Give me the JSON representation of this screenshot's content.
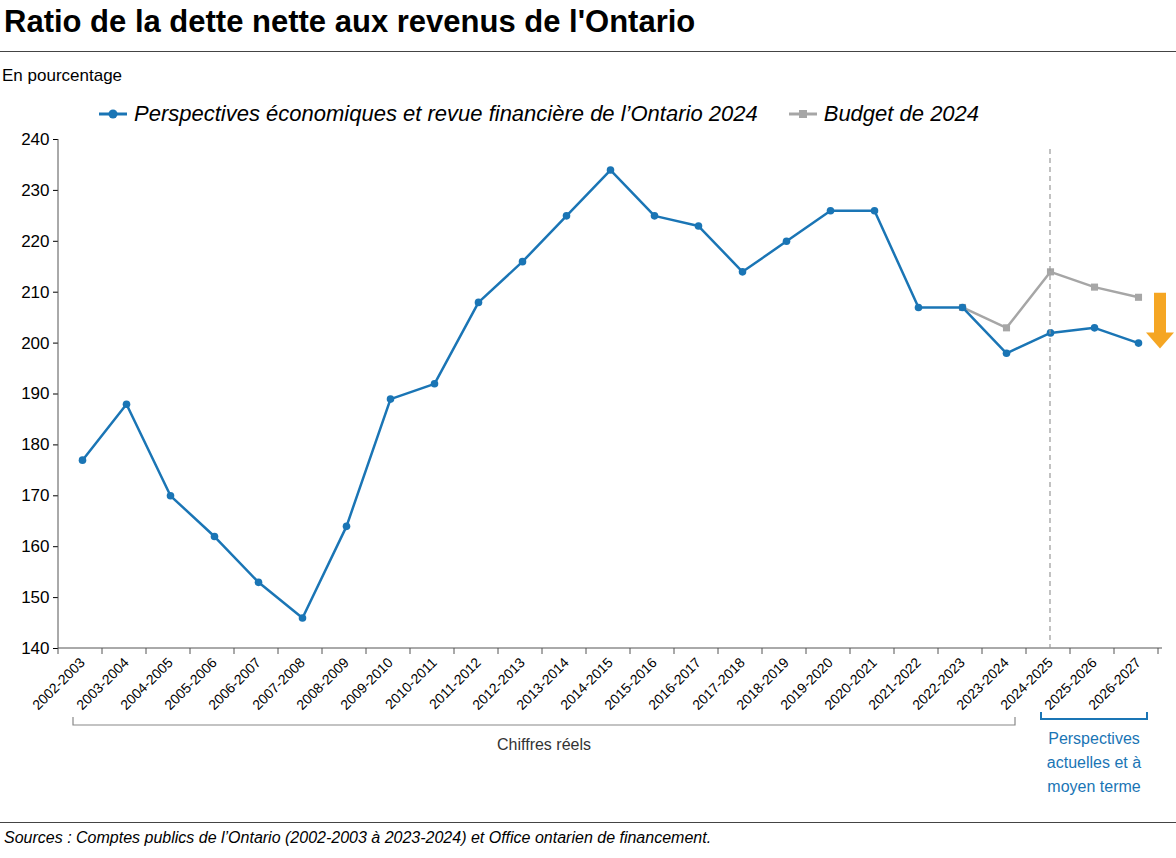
{
  "chart_data": {
    "type": "line",
    "title": "Ratio de la dette nette aux revenus de l'Ontario",
    "subtitle": "En pourcentage",
    "categories": [
      "2002-2003",
      "2003-2004",
      "2004-2005",
      "2005-2006",
      "2006-2007",
      "2007-2008",
      "2008-2009",
      "2009-2010",
      "2010-2011",
      "2011-2012",
      "2012-2013",
      "2013-2014",
      "2014-2015",
      "2015-2016",
      "2016-2017",
      "2017-2018",
      "2018-2019",
      "2019-2020",
      "2020-2021",
      "2021-2022",
      "2022-2023",
      "2023-2024",
      "2024-2025",
      "2025-2026",
      "2026-2027"
    ],
    "series": [
      {
        "name": "Perspectives économiques et revue financière de l’Ontario 2024",
        "color": "#1a75b5",
        "marker": "circle",
        "values": [
          177,
          188,
          170,
          162,
          153,
          146,
          164,
          189,
          192,
          208,
          216,
          225,
          234,
          225,
          223,
          214,
          220,
          226,
          226,
          207,
          207,
          198,
          202,
          203,
          200
        ]
      },
      {
        "name": "Budget de 2024",
        "color": "#a6a6a6",
        "marker": "square",
        "values": [
          null,
          null,
          null,
          null,
          null,
          null,
          null,
          null,
          null,
          null,
          null,
          null,
          null,
          null,
          null,
          null,
          null,
          null,
          null,
          null,
          207,
          203,
          214,
          211,
          209
        ]
      }
    ],
    "ylim": [
      140,
      240
    ],
    "yticks": [
      140,
      150,
      160,
      170,
      180,
      190,
      200,
      210,
      220,
      230,
      240
    ],
    "grid": false,
    "legend": "top",
    "annotations": [
      {
        "text": "Chiffres réels",
        "from": "2002-2003",
        "to": "2023-2024",
        "color": "#333333"
      },
      {
        "text": "Perspectives actuelles et à moyen terme",
        "from": "2024-2025",
        "to": "2026-2027",
        "color": "#1a75b5"
      }
    ],
    "source": "Sources : Comptes publics de l’Ontario (2002-2003 à 2023-2024) et Office ontarien de financement."
  }
}
